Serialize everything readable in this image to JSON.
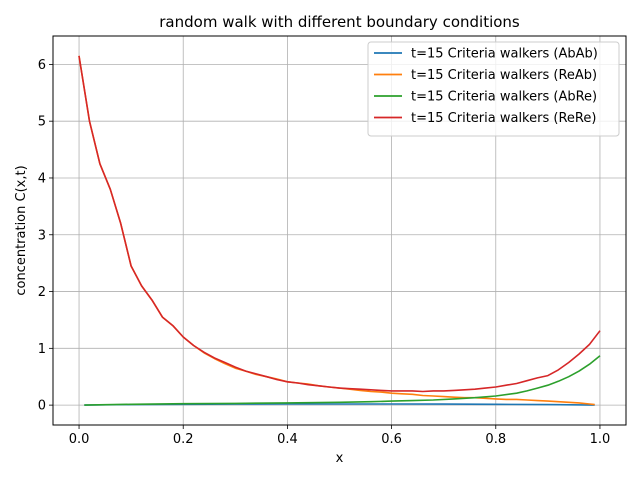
{
  "chart_data": {
    "type": "line",
    "title": "random walk with different boundary conditions",
    "xlabel": "x",
    "ylabel": "concentration C(x,t)",
    "xlim": [
      -0.05,
      1.05
    ],
    "ylim": [
      -0.35,
      6.5
    ],
    "xticks": [
      0.0,
      0.2,
      0.4,
      0.6,
      0.8,
      1.0
    ],
    "xtick_labels": [
      "0.0",
      "0.2",
      "0.4",
      "0.6",
      "0.8",
      "1.0"
    ],
    "yticks": [
      0,
      1,
      2,
      3,
      4,
      5,
      6
    ],
    "ytick_labels": [
      "0",
      "1",
      "2",
      "3",
      "4",
      "5",
      "6"
    ],
    "grid": true,
    "legend_position": "top-right",
    "series": [
      {
        "name": "t=15 Criteria walkers (AbAb)",
        "color": "#1f77b4",
        "x": [
          0.01,
          0.1,
          0.2,
          0.3,
          0.4,
          0.5,
          0.6,
          0.7,
          0.8,
          0.9,
          0.99
        ],
        "y": [
          0.0,
          0.01,
          0.015,
          0.018,
          0.02,
          0.02,
          0.02,
          0.018,
          0.015,
          0.01,
          0.0
        ]
      },
      {
        "name": "t=15 Criteria walkers (ReAb)",
        "color": "#ff7f0e",
        "x": [
          0.0,
          0.02,
          0.04,
          0.06,
          0.08,
          0.1,
          0.12,
          0.14,
          0.16,
          0.18,
          0.2,
          0.22,
          0.24,
          0.26,
          0.28,
          0.3,
          0.32,
          0.34,
          0.36,
          0.38,
          0.4,
          0.42,
          0.44,
          0.46,
          0.48,
          0.5,
          0.52,
          0.54,
          0.56,
          0.58,
          0.6,
          0.62,
          0.64,
          0.66,
          0.68,
          0.7,
          0.72,
          0.74,
          0.76,
          0.78,
          0.8,
          0.82,
          0.84,
          0.86,
          0.88,
          0.9,
          0.92,
          0.94,
          0.96,
          0.98,
          0.99
        ],
        "y": [
          6.15,
          5.0,
          4.25,
          3.8,
          3.2,
          2.45,
          2.1,
          1.85,
          1.55,
          1.4,
          1.2,
          1.05,
          0.92,
          0.82,
          0.73,
          0.65,
          0.6,
          0.54,
          0.5,
          0.46,
          0.41,
          0.39,
          0.37,
          0.34,
          0.32,
          0.3,
          0.28,
          0.26,
          0.24,
          0.23,
          0.21,
          0.2,
          0.19,
          0.17,
          0.16,
          0.15,
          0.14,
          0.13,
          0.13,
          0.12,
          0.11,
          0.1,
          0.1,
          0.09,
          0.08,
          0.07,
          0.06,
          0.05,
          0.04,
          0.02,
          0.01
        ]
      },
      {
        "name": "t=15 Criteria walkers (AbRe)",
        "color": "#2ca02c",
        "x": [
          0.01,
          0.1,
          0.2,
          0.3,
          0.4,
          0.5,
          0.56,
          0.6,
          0.64,
          0.68,
          0.72,
          0.76,
          0.8,
          0.84,
          0.86,
          0.88,
          0.9,
          0.92,
          0.94,
          0.96,
          0.98,
          1.0
        ],
        "y": [
          0.0,
          0.015,
          0.025,
          0.03,
          0.04,
          0.05,
          0.06,
          0.07,
          0.08,
          0.09,
          0.11,
          0.13,
          0.16,
          0.21,
          0.25,
          0.3,
          0.35,
          0.42,
          0.5,
          0.6,
          0.72,
          0.87
        ]
      },
      {
        "name": "t=15 Criteria walkers (ReRe)",
        "color": "#d62728",
        "x": [
          0.0,
          0.02,
          0.04,
          0.06,
          0.08,
          0.1,
          0.12,
          0.14,
          0.16,
          0.18,
          0.2,
          0.22,
          0.24,
          0.26,
          0.28,
          0.3,
          0.32,
          0.34,
          0.36,
          0.38,
          0.4,
          0.42,
          0.44,
          0.46,
          0.48,
          0.5,
          0.52,
          0.54,
          0.56,
          0.58,
          0.6,
          0.62,
          0.64,
          0.66,
          0.68,
          0.7,
          0.72,
          0.74,
          0.76,
          0.78,
          0.8,
          0.82,
          0.84,
          0.86,
          0.88,
          0.9,
          0.92,
          0.94,
          0.96,
          0.98,
          1.0
        ],
        "y": [
          6.15,
          5.0,
          4.25,
          3.8,
          3.2,
          2.45,
          2.1,
          1.85,
          1.55,
          1.4,
          1.2,
          1.05,
          0.93,
          0.83,
          0.75,
          0.67,
          0.6,
          0.55,
          0.5,
          0.45,
          0.41,
          0.39,
          0.36,
          0.34,
          0.32,
          0.3,
          0.29,
          0.28,
          0.27,
          0.26,
          0.25,
          0.25,
          0.25,
          0.24,
          0.25,
          0.25,
          0.26,
          0.27,
          0.28,
          0.3,
          0.32,
          0.35,
          0.38,
          0.43,
          0.48,
          0.52,
          0.62,
          0.75,
          0.9,
          1.07,
          1.31
        ]
      }
    ]
  }
}
